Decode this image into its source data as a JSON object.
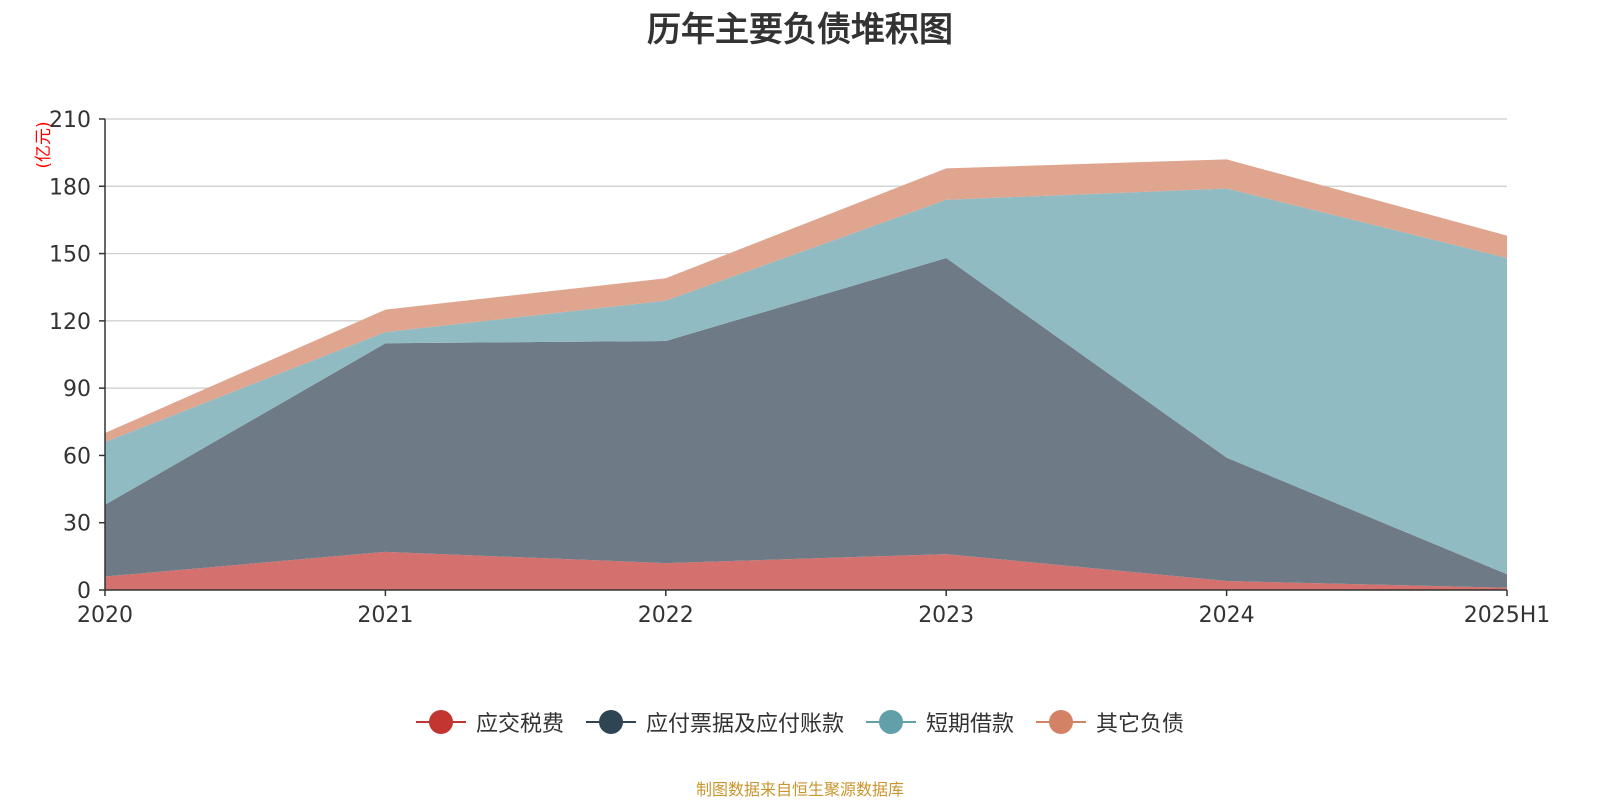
{
  "title": "历年主要负债堆积图",
  "source_note": "制图数据来自恒生聚源数据库",
  "chart_data": {
    "type": "area",
    "stacked": true,
    "title": "历年主要负债堆积图",
    "ylabel": "(亿元)",
    "xlabel": "",
    "categories": [
      "2020",
      "2021",
      "2022",
      "2023",
      "2024",
      "2025H1"
    ],
    "ylim": [
      0,
      210
    ],
    "yticks": [
      0,
      30,
      60,
      90,
      120,
      150,
      180,
      210
    ],
    "grid": true,
    "legend_position": "bottom",
    "series": [
      {
        "name": "应交税费",
        "values": [
          6,
          17,
          12,
          16,
          4,
          1
        ],
        "color": "#c23531",
        "fill": "#d4706d"
      },
      {
        "name": "应付票据及应付账款",
        "values": [
          32,
          93,
          99,
          132,
          55,
          6
        ],
        "color": "#2f4554",
        "fill": "#6e7b86"
      },
      {
        "name": "短期借款",
        "values": [
          28,
          5,
          18,
          26,
          120,
          141
        ],
        "color": "#61a0a8",
        "fill": "#91bbc2"
      },
      {
        "name": "其它负债",
        "values": [
          4,
          10,
          10,
          14,
          13,
          10
        ],
        "color": "#d48265",
        "fill": "#e0a58f"
      }
    ]
  }
}
